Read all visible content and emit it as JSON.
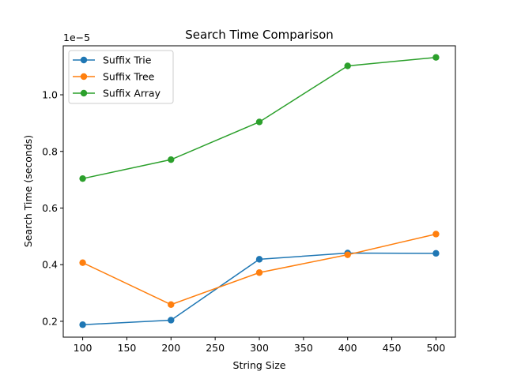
{
  "chart_data": {
    "type": "line",
    "title": "Search Time Comparison",
    "xlabel": "String Size",
    "ylabel": "Search Time (seconds)",
    "y_offset_label": "1e−5",
    "xlim": [
      78,
      522
    ],
    "ylim": [
      0.144,
      1.173
    ],
    "xticks": [
      100,
      150,
      200,
      250,
      300,
      350,
      400,
      450,
      500
    ],
    "yticks": [
      0.2,
      0.4,
      0.6,
      0.8,
      1.0
    ],
    "xtick_labels": [
      "100",
      "150",
      "200",
      "250",
      "300",
      "350",
      "400",
      "450",
      "500"
    ],
    "ytick_labels": [
      "0.2",
      "0.4",
      "0.6",
      "0.8",
      "1.0"
    ],
    "x": [
      100,
      200,
      300,
      400,
      500
    ],
    "series": [
      {
        "name": "Suffix Trie",
        "color": "#1f77b4",
        "values": [
          0.188,
          0.204,
          0.419,
          0.441,
          0.44
        ]
      },
      {
        "name": "Suffix Tree",
        "color": "#ff7f0e",
        "values": [
          0.407,
          0.259,
          0.372,
          0.435,
          0.508
        ]
      },
      {
        "name": "Suffix Array",
        "color": "#2ca02c",
        "values": [
          0.704,
          0.771,
          0.904,
          1.102,
          1.132
        ]
      }
    ],
    "legend_position": "top-left",
    "grid": false
  }
}
